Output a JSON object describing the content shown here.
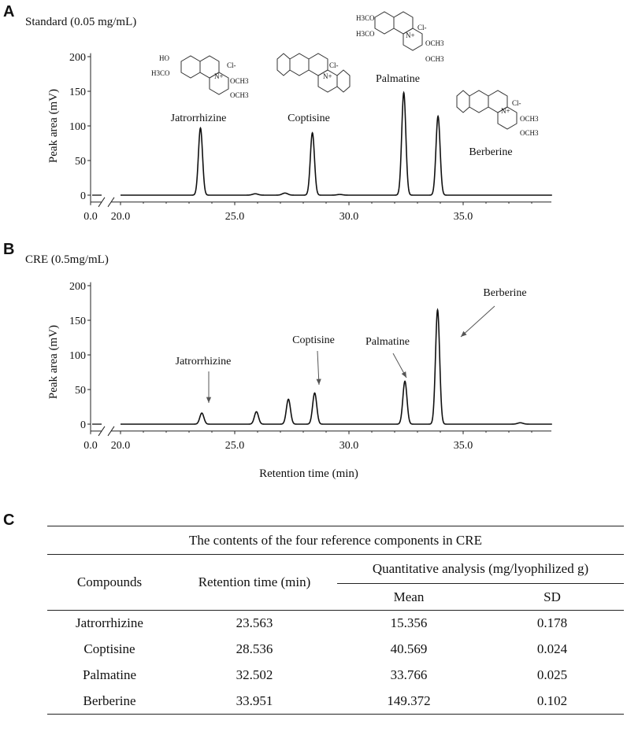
{
  "panels": {
    "a": {
      "letter": "A",
      "title": "Standard (0.05 mg/mL)"
    },
    "b": {
      "letter": "B",
      "title": "CRE (0.5mg/mL)"
    },
    "c": {
      "letter": "C"
    }
  },
  "chart_data": [
    {
      "type": "line",
      "title": "Standard (0.05 mg/mL)",
      "ylabel": "Peak area (mV)",
      "xlabel": "",
      "ylim": [
        -10,
        200
      ],
      "xlim": [
        20.0,
        39.0
      ],
      "yticks": [
        "0",
        "50",
        "100",
        "150",
        "200"
      ],
      "xticks": [
        "0.0",
        "20.0",
        "25.0",
        "30.0",
        "35.0"
      ],
      "axis_break": true,
      "peaks": [
        {
          "name": "Jatrorrhizine",
          "x": 23.5,
          "height": 97
        },
        {
          "name": "Coptisine",
          "x": 28.4,
          "height": 90
        },
        {
          "name": "Palmatine",
          "x": 32.4,
          "height": 148
        },
        {
          "name": "Berberine",
          "x": 33.9,
          "height": 114
        }
      ],
      "minor_peaks": [
        {
          "x": 25.9,
          "height": 2
        },
        {
          "x": 27.2,
          "height": 3
        },
        {
          "x": 29.6,
          "height": 1
        }
      ],
      "annotations": [
        "Jatrorrhizine",
        "Coptisine",
        "Palmatine",
        "Berberine"
      ],
      "structure_labels": [
        "HO",
        "H3CO",
        "OCH3",
        "OCH3",
        "O",
        "O",
        "O",
        "O",
        "H3CO",
        "H3CO",
        "OCH3",
        "OCH3",
        "O",
        "O",
        "OCH3",
        "OCH3",
        "N+",
        "Cl-"
      ]
    },
    {
      "type": "line",
      "title": "CRE (0.5mg/mL)",
      "ylabel": "Peak area (mV)",
      "xlabel": "Retention time (min)",
      "ylim": [
        -10,
        200
      ],
      "xlim": [
        20.0,
        39.0
      ],
      "yticks": [
        "0",
        "50",
        "100",
        "150",
        "200"
      ],
      "xticks": [
        "0.0",
        "20.0",
        "25.0",
        "30.0",
        "35.0"
      ],
      "axis_break": true,
      "peaks": [
        {
          "name": "Jatrorrhizine",
          "x": 23.56,
          "height": 16
        },
        {
          "name": "",
          "x": 25.95,
          "height": 18
        },
        {
          "name": "",
          "x": 27.35,
          "height": 36
        },
        {
          "name": "Coptisine",
          "x": 28.5,
          "height": 45
        },
        {
          "name": "Palmatine",
          "x": 32.45,
          "height": 62
        },
        {
          "name": "Berberine",
          "x": 33.88,
          "height": 165
        }
      ],
      "minor_peaks": [
        {
          "x": 37.5,
          "height": 2
        }
      ],
      "annotations": [
        "Jatrorrhizine",
        "Coptisine",
        "Palmatine",
        "Berberine"
      ]
    }
  ],
  "table": {
    "caption": "The contents of the four reference components in CRE",
    "headers": {
      "compounds": "Compounds",
      "retention": "Retention time (min)",
      "quant": "Quantitative analysis (mg/lyophilized g)",
      "mean": "Mean",
      "sd": "SD"
    },
    "rows": [
      {
        "compound": "Jatrorrhizine",
        "rt": "23.563",
        "mean": "15.356",
        "sd": "0.178"
      },
      {
        "compound": "Coptisine",
        "rt": "28.536",
        "mean": "40.569",
        "sd": "0.024"
      },
      {
        "compound": "Palmatine",
        "rt": "32.502",
        "mean": "33.766",
        "sd": "0.025"
      },
      {
        "compound": "Berberine",
        "rt": "33.951",
        "mean": "149.372",
        "sd": "0.102"
      }
    ]
  }
}
